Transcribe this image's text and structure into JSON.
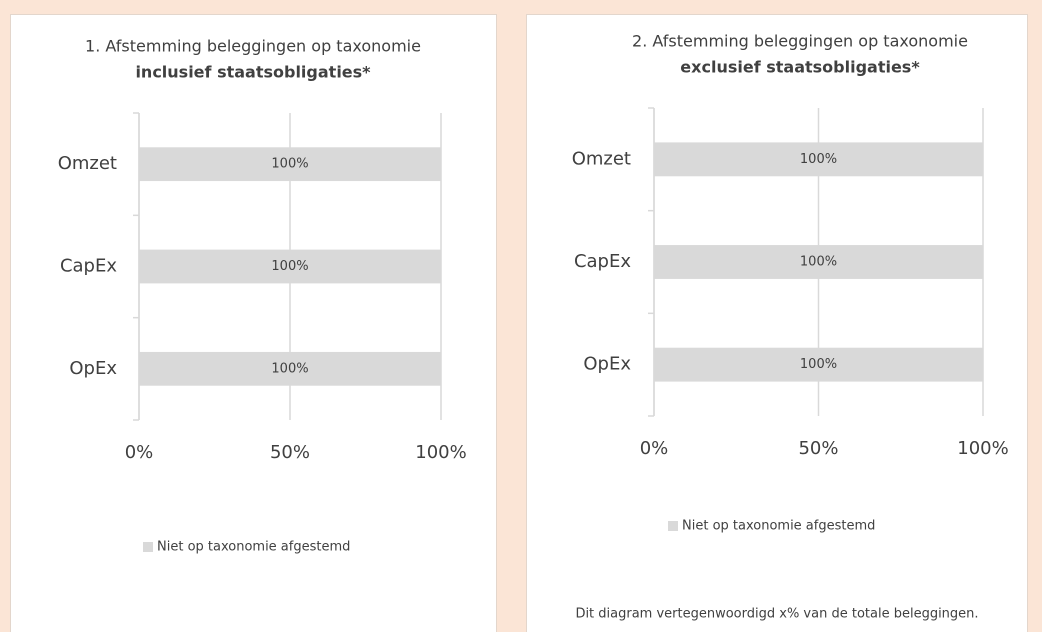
{
  "chart_data": [
    {
      "type": "bar",
      "orientation": "horizontal",
      "title": "1. Afstemming beleggingen op taxonomie",
      "subtitle": "inclusief staatsobligaties*",
      "categories": [
        "Omzet",
        "CapEx",
        "OpEx"
      ],
      "series": [
        {
          "name": "Niet op taxonomie afgestemd",
          "color": "#d9d9d9",
          "values": [
            100,
            100,
            100
          ],
          "value_labels": [
            "100%",
            "100%",
            "100%"
          ]
        }
      ],
      "xlim": [
        0,
        100
      ],
      "xticks": [
        {
          "value": 0,
          "label": "0%"
        },
        {
          "value": 50,
          "label": "50%"
        },
        {
          "value": 100,
          "label": "100%"
        }
      ],
      "grid": true,
      "legend": "bottom"
    },
    {
      "type": "bar",
      "orientation": "horizontal",
      "title": "2. Afstemming beleggingen op taxonomie",
      "subtitle": "exclusief staatsobligaties*",
      "categories": [
        "Omzet",
        "CapEx",
        "OpEx"
      ],
      "series": [
        {
          "name": "Niet op taxonomie afgestemd",
          "color": "#d9d9d9",
          "values": [
            100,
            100,
            100
          ],
          "value_labels": [
            "100%",
            "100%",
            "100%"
          ]
        }
      ],
      "xlim": [
        0,
        100
      ],
      "xticks": [
        {
          "value": 0,
          "label": "0%"
        },
        {
          "value": 50,
          "label": "50%"
        },
        {
          "value": 100,
          "label": "100%"
        }
      ],
      "grid": true,
      "legend": "bottom",
      "annotation": "Dit diagram vertegenwoordigd x% van de totale beleggingen."
    }
  ]
}
